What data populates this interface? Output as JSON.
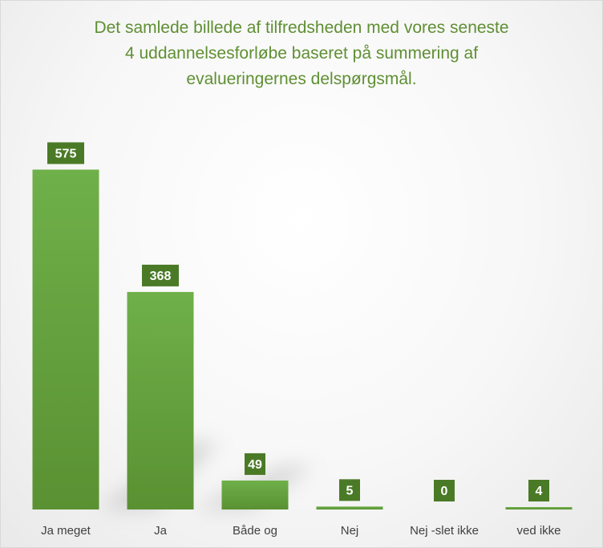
{
  "colors": {
    "title": "#5f8f33",
    "bar_top": "#6fb04a",
    "bar_bottom": "#5a9132",
    "label_box": "#4a7a26",
    "label_text": "#ffffff",
    "axis_text": "#404040"
  },
  "chart_data": {
    "type": "bar",
    "title": "Det samlede billede af tilfredsheden med vores seneste 4 uddannelsesforløbe baseret på summering af evalueringernes delspørgsmål.",
    "title_lines": [
      "Det samlede billede af tilfredsheden med vores seneste",
      "4 uddannelsesforløbe baseret på summering af",
      "evalueringernes delspørgsmål."
    ],
    "categories": [
      "Ja meget",
      "Ja",
      "Både og",
      "Nej",
      "Nej -slet ikke",
      "ved ikke"
    ],
    "values": [
      575,
      368,
      49,
      5,
      0,
      4
    ],
    "ylim": [
      0,
      600
    ],
    "grid": false,
    "legend": "none",
    "data_labels": true
  }
}
